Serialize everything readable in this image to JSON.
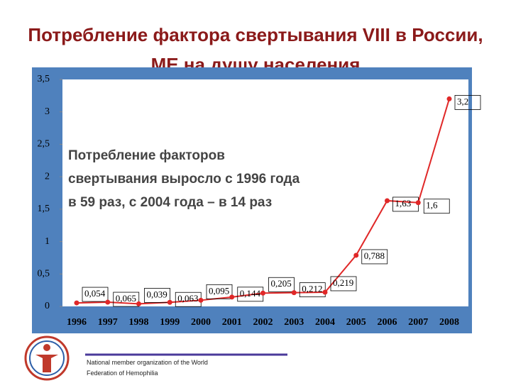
{
  "chart_data": {
    "type": "line",
    "title": "Потребление фактора свертывания VIII в России, МЕ на душу населения",
    "categories": [
      "1996",
      "1997",
      "1998",
      "1999",
      "2000",
      "2001",
      "2002",
      "2003",
      "2004",
      "2005",
      "2006",
      "2007",
      "2008"
    ],
    "values": [
      0.054,
      0.065,
      0.039,
      0.063,
      0.095,
      0.144,
      0.205,
      0.212,
      0.219,
      0.788,
      1.63,
      1.6,
      3.2
    ],
    "value_labels": [
      "0,054",
      "0,065",
      "0,039",
      "0,063",
      "0,095",
      "0,144",
      "0,205",
      "0,212",
      "0,219",
      "0,788",
      "1,63",
      "1,6",
      "3,2"
    ],
    "color": "#e02828",
    "ylim": [
      0,
      3.5
    ],
    "yticks": [
      0,
      {
        "value": 0.5,
        "label": "0,5"
      },
      1,
      {
        "value": 1.5,
        "label": "1,5"
      },
      2,
      {
        "value": 2.5,
        "label": "2,5"
      },
      3,
      {
        "value": 3.5,
        "label": "3,5"
      }
    ],
    "annotation": [
      "Потребление факторов",
      "свертывания выросло с 1996 года",
      "в 59 раз, с 2004 года – в 14 раз"
    ],
    "footer": [
      "National member organization of the World",
      "Federation of Hemophilia"
    ]
  }
}
